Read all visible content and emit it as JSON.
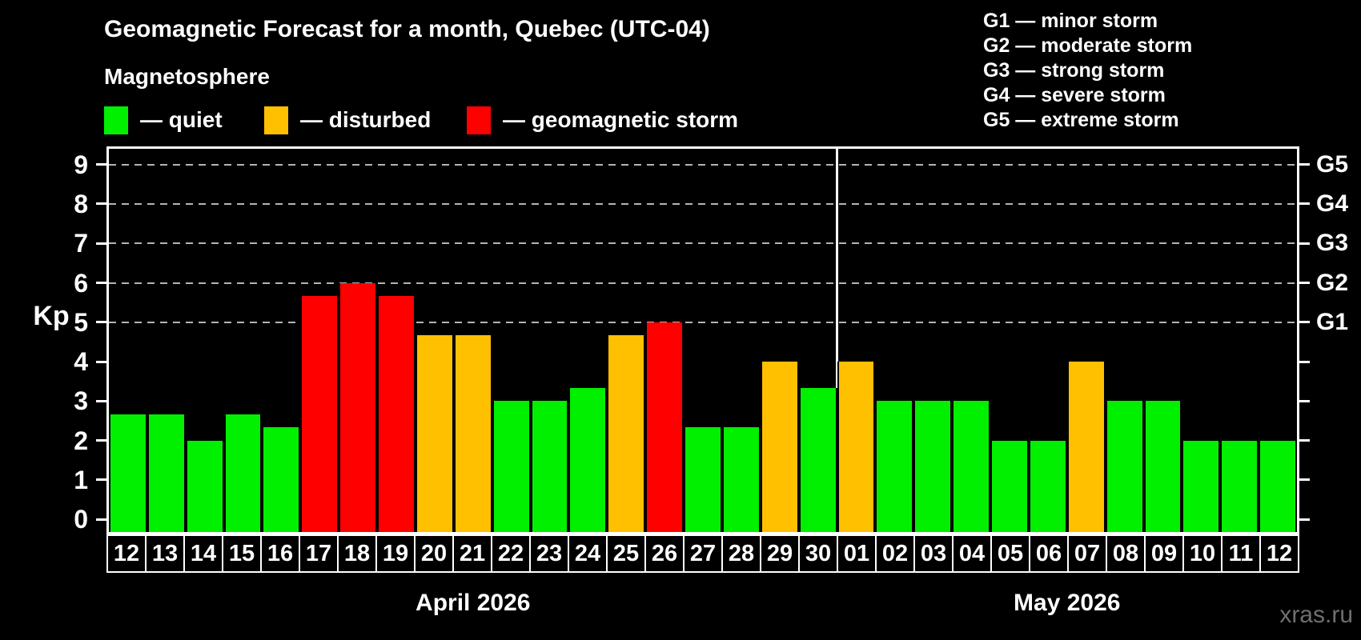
{
  "title": "Geomagnetic Forecast for a month, Quebec (UTC-04)",
  "subtitle": "Magnetosphere",
  "legend": {
    "items": [
      {
        "id": "quiet",
        "label": "— quiet",
        "color": "#00f000"
      },
      {
        "id": "disturbed",
        "label": "— disturbed",
        "color": "#ffc000"
      },
      {
        "id": "storm",
        "label": "— geomagnetic storm",
        "color": "#ff0000"
      }
    ]
  },
  "g_legend": [
    "G1 — minor storm",
    "G2 — moderate storm",
    "G3 — strong storm",
    "G4 — severe storm",
    "G5 — extreme storm"
  ],
  "y_axis": {
    "label": "Kp",
    "tick_labels": [
      "0",
      "1",
      "2",
      "3",
      "4",
      "5",
      "6",
      "7",
      "8",
      "9"
    ]
  },
  "right_axis": {
    "labels": [
      {
        "kp": 5,
        "label": "G1"
      },
      {
        "kp": 6,
        "label": "G2"
      },
      {
        "kp": 7,
        "label": "G3"
      },
      {
        "kp": 8,
        "label": "G4"
      },
      {
        "kp": 9,
        "label": "G5"
      }
    ]
  },
  "watermark": "xras.ru",
  "chart_data": {
    "type": "bar",
    "title": "Geomagnetic Forecast for a month, Quebec (UTC-04)",
    "ylabel": "Kp",
    "ylim": [
      0,
      9
    ],
    "gridlines_kp": [
      5,
      6,
      7,
      8,
      9
    ],
    "legend_position": "top",
    "months": [
      {
        "label": "April 2026",
        "short": "apr",
        "days": 19
      },
      {
        "label": "May 2026",
        "short": "may",
        "days": 12
      }
    ],
    "categories": [
      "12",
      "13",
      "14",
      "15",
      "16",
      "17",
      "18",
      "19",
      "20",
      "21",
      "22",
      "23",
      "24",
      "25",
      "26",
      "27",
      "28",
      "29",
      "30",
      "01",
      "02",
      "03",
      "04",
      "05",
      "06",
      "07",
      "08",
      "09",
      "10",
      "11",
      "12"
    ],
    "values": [
      2.67,
      2.67,
      2.0,
      2.67,
      2.33,
      5.67,
      6.0,
      5.67,
      4.67,
      4.67,
      3.0,
      3.0,
      3.33,
      4.67,
      5.0,
      2.33,
      2.33,
      4.0,
      3.33,
      4.0,
      3.0,
      3.0,
      3.0,
      2.0,
      2.0,
      4.0,
      3.0,
      3.0,
      2.0,
      2.0,
      2.0
    ],
    "status": [
      "quiet",
      "quiet",
      "quiet",
      "quiet",
      "quiet",
      "storm",
      "storm",
      "storm",
      "disturbed",
      "disturbed",
      "quiet",
      "quiet",
      "quiet",
      "disturbed",
      "storm",
      "quiet",
      "quiet",
      "disturbed",
      "quiet",
      "disturbed",
      "quiet",
      "quiet",
      "quiet",
      "quiet",
      "quiet",
      "disturbed",
      "quiet",
      "quiet",
      "quiet",
      "quiet",
      "quiet"
    ],
    "colors": {
      "quiet": "#00f000",
      "disturbed": "#ffc000",
      "storm": "#ff0000"
    }
  }
}
